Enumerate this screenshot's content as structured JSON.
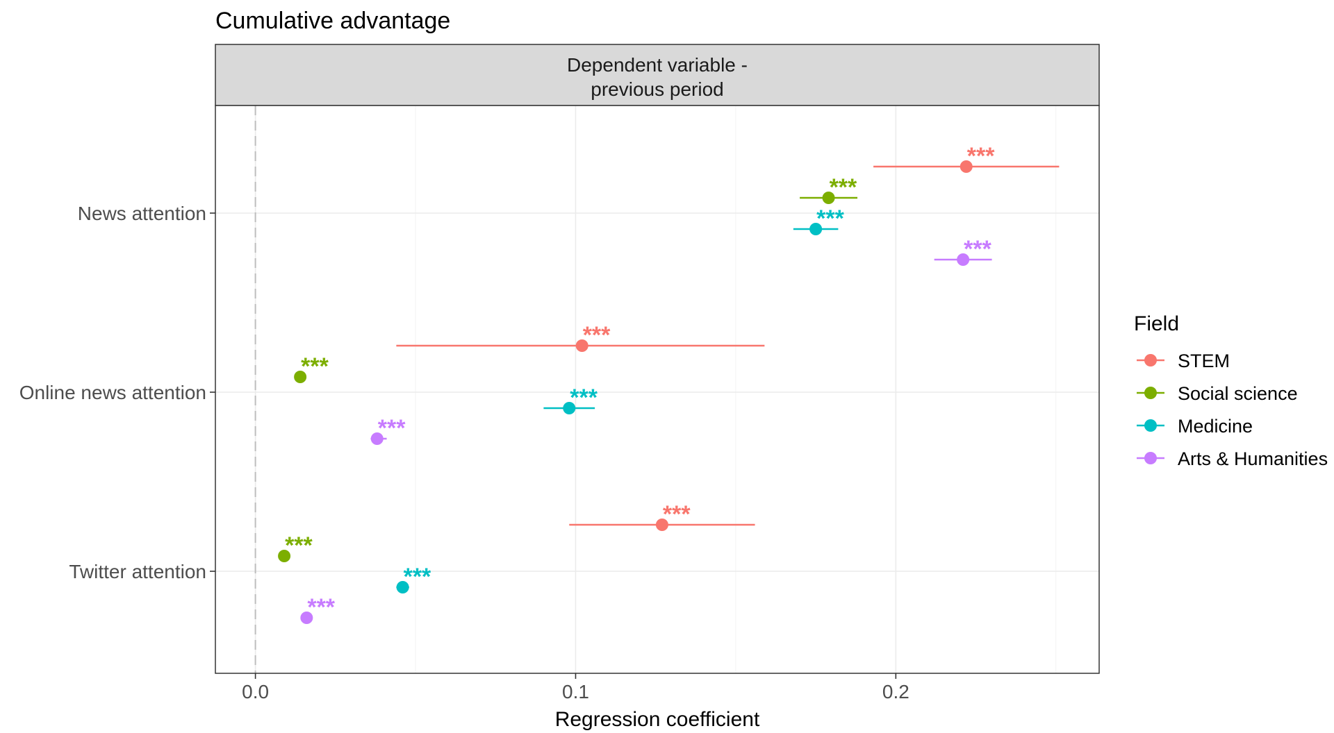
{
  "chart_data": {
    "type": "scatter",
    "title": "Cumulative advantage",
    "facet_label": "Dependent variable -\nprevious period",
    "xlabel": "Regression coefficient",
    "ylabel": "",
    "xlim": [
      -0.0125,
      0.2635
    ],
    "x_ticks": [
      0.0,
      0.1,
      0.2
    ],
    "x_tick_labels": [
      "0.0",
      "0.1",
      "0.2"
    ],
    "reference_line": 0,
    "categories": [
      "News attention",
      "Online news attention",
      "Twitter attention"
    ],
    "legend": {
      "title": "Field",
      "position": "right"
    },
    "series": [
      {
        "name": "STEM",
        "color": "#F8766D",
        "points": [
          {
            "category": "News attention",
            "estimate": 0.222,
            "ci_low": 0.193,
            "ci_high": 0.251,
            "significance": "***"
          },
          {
            "category": "Online news attention",
            "estimate": 0.102,
            "ci_low": 0.044,
            "ci_high": 0.159,
            "significance": "***"
          },
          {
            "category": "Twitter attention",
            "estimate": 0.127,
            "ci_low": 0.098,
            "ci_high": 0.156,
            "significance": "***"
          }
        ]
      },
      {
        "name": "Social science",
        "color": "#7CAE00",
        "points": [
          {
            "category": "News attention",
            "estimate": 0.179,
            "ci_low": 0.17,
            "ci_high": 0.188,
            "significance": "***"
          },
          {
            "category": "Online news attention",
            "estimate": 0.014,
            "ci_low": 0.014,
            "ci_high": 0.014,
            "significance": "***"
          },
          {
            "category": "Twitter attention",
            "estimate": 0.009,
            "ci_low": 0.009,
            "ci_high": 0.009,
            "significance": "***"
          }
        ]
      },
      {
        "name": "Medicine",
        "color": "#00BFC4",
        "points": [
          {
            "category": "News attention",
            "estimate": 0.175,
            "ci_low": 0.168,
            "ci_high": 0.182,
            "significance": "***"
          },
          {
            "category": "Online news attention",
            "estimate": 0.098,
            "ci_low": 0.09,
            "ci_high": 0.106,
            "significance": "***"
          },
          {
            "category": "Twitter attention",
            "estimate": 0.046,
            "ci_low": 0.044,
            "ci_high": 0.048,
            "significance": "***"
          }
        ]
      },
      {
        "name": "Arts & Humanities",
        "color": "#C77CFF",
        "points": [
          {
            "category": "News attention",
            "estimate": 0.221,
            "ci_low": 0.212,
            "ci_high": 0.23,
            "significance": "***"
          },
          {
            "category": "Online news attention",
            "estimate": 0.038,
            "ci_low": 0.036,
            "ci_high": 0.041,
            "significance": "***"
          },
          {
            "category": "Twitter attention",
            "estimate": 0.016,
            "ci_low": 0.016,
            "ci_high": 0.016,
            "significance": "***"
          }
        ]
      }
    ]
  }
}
